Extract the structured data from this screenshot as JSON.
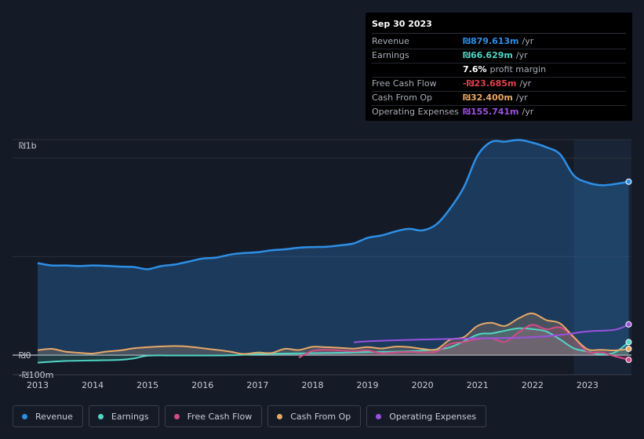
{
  "chart_data": {
    "type": "area",
    "y_axis_labels": [
      "₪1b",
      "₪0",
      "-₪100m"
    ],
    "ylim": [
      -100,
      1100
    ],
    "xlim": [
      2013.0,
      2023.8
    ],
    "x_ticks": [
      "2013",
      "2014",
      "2015",
      "2016",
      "2017",
      "2018",
      "2019",
      "2020",
      "2021",
      "2022",
      "2023"
    ],
    "forecast_start": 2022.75,
    "series": [
      {
        "name": "Revenue",
        "color": "#2d8fe6",
        "x": [
          2013.0,
          2013.25,
          2013.5,
          2013.75,
          2014.0,
          2014.25,
          2014.5,
          2014.75,
          2015.0,
          2015.25,
          2015.5,
          2015.75,
          2016.0,
          2016.25,
          2016.5,
          2016.75,
          2017.0,
          2017.25,
          2017.5,
          2017.75,
          2018.0,
          2018.25,
          2018.5,
          2018.75,
          2019.0,
          2019.25,
          2019.5,
          2019.75,
          2020.0,
          2020.25,
          2020.5,
          2020.75,
          2021.0,
          2021.25,
          2021.5,
          2021.75,
          2022.0,
          2022.25,
          2022.5,
          2022.75,
          2023.0,
          2023.25,
          2023.5,
          2023.75
        ],
        "values": [
          467,
          455,
          455,
          452,
          455,
          453,
          449,
          447,
          436,
          452,
          460,
          475,
          490,
          495,
          510,
          518,
          522,
          532,
          537,
          545,
          548,
          550,
          557,
          567,
          595,
          607,
          627,
          641,
          633,
          663,
          743,
          851,
          1012,
          1082,
          1083,
          1092,
          1078,
          1055,
          1020,
          912,
          876,
          862,
          868,
          880
        ]
      },
      {
        "name": "Earnings",
        "color": "#4fd6c4",
        "x": [
          2013.0,
          2013.5,
          2014.0,
          2014.5,
          2014.75,
          2015.0,
          2015.5,
          2016.0,
          2016.5,
          2017.0,
          2017.5,
          2018.0,
          2018.5,
          2019.0,
          2019.5,
          2020.0,
          2020.5,
          2021.0,
          2021.25,
          2021.5,
          2021.75,
          2022.0,
          2022.25,
          2022.5,
          2022.75,
          2023.0,
          2023.25,
          2023.5,
          2023.75
        ],
        "values": [
          -38,
          -30,
          -27,
          -24,
          -17,
          -3,
          -2,
          -2,
          -1,
          5,
          8,
          10,
          12,
          16,
          18,
          23,
          40,
          104,
          110,
          124,
          136,
          132,
          120,
          80,
          35,
          18,
          4,
          14,
          66
        ]
      },
      {
        "name": "Free Cash Flow",
        "color": "#d14b86",
        "x": [
          2017.75,
          2018.0,
          2018.25,
          2018.5,
          2018.75,
          2019.0,
          2019.25,
          2019.5,
          2019.75,
          2020.0,
          2020.25,
          2020.5,
          2020.75,
          2021.0,
          2021.25,
          2021.5,
          2021.75,
          2022.0,
          2022.25,
          2022.5,
          2022.75,
          2023.0,
          2023.25,
          2023.5,
          2023.75
        ],
        "values": [
          -13,
          22,
          27,
          24,
          20,
          24,
          10,
          14,
          17,
          15,
          18,
          57,
          67,
          82,
          86,
          68,
          117,
          154,
          131,
          141,
          90,
          17,
          14,
          -6,
          -24
        ]
      },
      {
        "name": "Cash From Op",
        "color": "#e8a867",
        "x": [
          2013.0,
          2013.25,
          2013.5,
          2013.75,
          2014.0,
          2014.25,
          2014.5,
          2014.75,
          2015.0,
          2015.25,
          2015.5,
          2015.75,
          2016.0,
          2016.25,
          2016.5,
          2016.75,
          2017.0,
          2017.25,
          2017.5,
          2017.75,
          2018.0,
          2018.25,
          2018.5,
          2018.75,
          2019.0,
          2019.25,
          2019.5,
          2019.75,
          2020.0,
          2020.25,
          2020.5,
          2020.75,
          2021.0,
          2021.25,
          2021.5,
          2021.75,
          2022.0,
          2022.25,
          2022.5,
          2022.75,
          2023.0,
          2023.25,
          2023.5,
          2023.75
        ],
        "values": [
          25,
          32,
          18,
          12,
          8,
          18,
          24,
          35,
          40,
          44,
          46,
          43,
          35,
          27,
          18,
          6,
          13,
          11,
          32,
          26,
          42,
          40,
          37,
          33,
          41,
          34,
          43,
          41,
          32,
          29,
          78,
          91,
          148,
          164,
          148,
          187,
          212,
          178,
          161,
          92,
          30,
          27,
          24,
          32
        ]
      },
      {
        "name": "Operating Expenses",
        "color": "#9b51e0",
        "x": [
          2018.75,
          2019.0,
          2019.5,
          2020.0,
          2020.5,
          2021.0,
          2021.5,
          2022.0,
          2022.5,
          2023.0,
          2023.5,
          2023.75
        ],
        "values": [
          65,
          70,
          75,
          79,
          82,
          85,
          87,
          91,
          102,
          120,
          129,
          156
        ]
      }
    ],
    "tooltip": {
      "date": "Sep 30 2023",
      "rows": [
        {
          "label": "Revenue",
          "value": "₪879.613m",
          "unit": "/yr",
          "color": "#2d8fe6"
        },
        {
          "label": "Earnings",
          "value": "₪66.629m",
          "unit": "/yr",
          "color": "#4fd6c4"
        },
        {
          "label": "",
          "value": "7.6%",
          "unit": "profit margin",
          "color": "#ffffff"
        },
        {
          "label": "Free Cash Flow",
          "value": "-₪23.685m",
          "unit": "/yr",
          "color": "#e0404e"
        },
        {
          "label": "Cash From Op",
          "value": "₪32.400m",
          "unit": "/yr",
          "color": "#e8a867"
        },
        {
          "label": "Operating Expenses",
          "value": "₪155.741m",
          "unit": "/yr",
          "color": "#9b51e0"
        }
      ]
    }
  }
}
